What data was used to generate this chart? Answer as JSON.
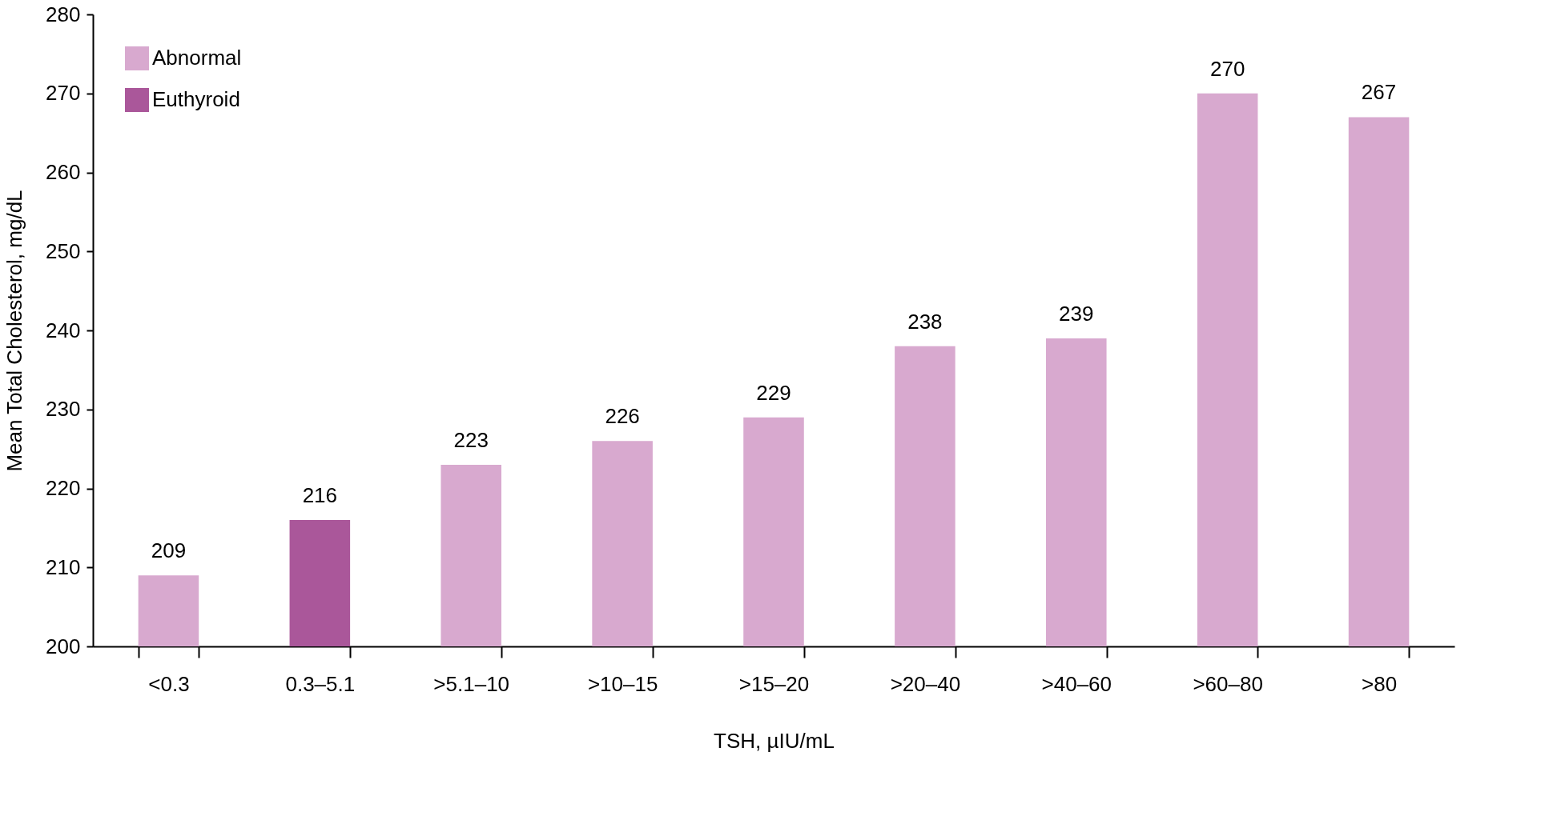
{
  "chart_data": {
    "type": "bar",
    "xlabel": "TSH, µIU/mL",
    "ylabel": "Mean Total Cholesterol, mg/dL",
    "categories": [
      "<0.3",
      "0.3–5.1",
      ">5.1–10",
      ">10–15",
      ">15–20",
      ">20–40",
      ">40–60",
      ">60–80",
      ">80"
    ],
    "series": [
      {
        "name": "Abnormal",
        "color": "#d8a9cf",
        "values": [
          209,
          null,
          223,
          226,
          229,
          238,
          239,
          270,
          267
        ]
      },
      {
        "name": "Euthyroid",
        "color": "#aa579a",
        "values": [
          null,
          216,
          null,
          null,
          null,
          null,
          null,
          null,
          null
        ]
      }
    ],
    "ylim": [
      200,
      280
    ],
    "yticks": [
      200,
      210,
      220,
      230,
      240,
      250,
      260,
      270,
      280
    ],
    "data_labels": true,
    "legend": "top left",
    "grid": false
  }
}
